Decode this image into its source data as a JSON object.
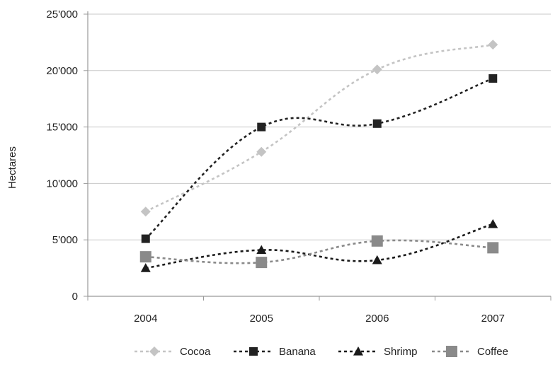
{
  "chart_data": {
    "type": "line",
    "title": "",
    "xlabel": "",
    "ylabel": "Hectares",
    "categories": [
      "2004",
      "2005",
      "2006",
      "2007"
    ],
    "ylim": [
      0,
      25000
    ],
    "yticks": [
      0,
      5000,
      10000,
      15000,
      20000,
      25000
    ],
    "ytick_labels": [
      "0",
      "5'000",
      "10'000",
      "15'000",
      "20'000",
      "25'000"
    ],
    "grid": "horizontal",
    "legend_position": "bottom",
    "series": [
      {
        "name": "Cocoa",
        "values": [
          7500,
          12800,
          20100,
          22300
        ],
        "color": "#c4c4c4",
        "marker": "diamond"
      },
      {
        "name": "Banana",
        "values": [
          5100,
          15000,
          15300,
          19300
        ],
        "color": "#222222",
        "marker": "square"
      },
      {
        "name": "Shrimp",
        "values": [
          2500,
          4100,
          3200,
          6400
        ],
        "color": "#1a1a1a",
        "marker": "triangle"
      },
      {
        "name": "Coffee",
        "values": [
          3500,
          3000,
          4900,
          4300
        ],
        "color": "#8a8a8a",
        "marker": "square-large"
      }
    ]
  }
}
